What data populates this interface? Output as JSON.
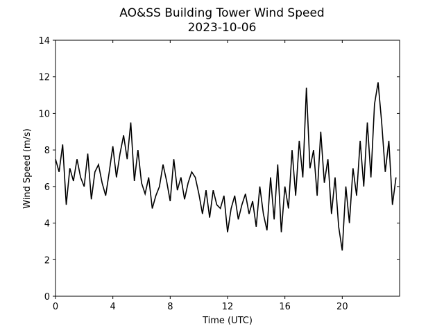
{
  "chart_data": {
    "type": "line",
    "title": "AO&SS Building Tower Wind Speed",
    "subtitle": "2023-10-06",
    "x_label": "Time (UTC)",
    "y_label": "Wind Speed (m/s)",
    "x": [
      0,
      0.25,
      0.5,
      0.75,
      1,
      1.25,
      1.5,
      1.75,
      2,
      2.25,
      2.5,
      2.75,
      3,
      3.25,
      3.5,
      3.75,
      4,
      4.25,
      4.5,
      4.75,
      5,
      5.25,
      5.5,
      5.75,
      6,
      6.25,
      6.5,
      6.75,
      7,
      7.25,
      7.5,
      7.75,
      8,
      8.25,
      8.5,
      8.75,
      9,
      9.25,
      9.5,
      9.75,
      10,
      10.25,
      10.5,
      10.75,
      11,
      11.25,
      11.5,
      11.75,
      12,
      12.25,
      12.5,
      12.75,
      13,
      13.25,
      13.5,
      13.75,
      14,
      14.25,
      14.5,
      14.75,
      15,
      15.25,
      15.5,
      15.75,
      16,
      16.25,
      16.5,
      16.75,
      17,
      17.25,
      17.5,
      17.75,
      18,
      18.25,
      18.5,
      18.75,
      19,
      19.25,
      19.5,
      19.75,
      20,
      20.25,
      20.5,
      20.75,
      21,
      21.25,
      21.5,
      21.75,
      22,
      22.25,
      22.5,
      22.75,
      23,
      23.25,
      23.5,
      23.75
    ],
    "series": [
      {
        "name": "Wind Speed",
        "color": "#000000",
        "values": [
          7.5,
          6.8,
          8.3,
          5.0,
          7.0,
          6.3,
          7.5,
          6.5,
          6.0,
          7.8,
          5.3,
          6.8,
          7.2,
          6.2,
          5.5,
          6.8,
          8.2,
          6.5,
          7.8,
          8.8,
          7.5,
          9.5,
          6.3,
          8.0,
          6.2,
          5.6,
          6.5,
          4.8,
          5.5,
          6.0,
          7.2,
          6.3,
          5.2,
          7.5,
          5.8,
          6.5,
          5.3,
          6.2,
          6.8,
          6.5,
          5.6,
          4.5,
          5.8,
          4.3,
          5.8,
          5.0,
          4.8,
          5.5,
          3.5,
          4.8,
          5.5,
          4.2,
          5.0,
          5.6,
          4.5,
          5.2,
          3.8,
          6.0,
          4.5,
          3.6,
          6.5,
          4.2,
          7.2,
          3.5,
          6.0,
          4.8,
          8.0,
          5.5,
          8.5,
          6.5,
          11.4,
          7.0,
          8.0,
          5.5,
          9.0,
          6.2,
          7.5,
          4.5,
          6.5,
          3.8,
          2.5,
          6.0,
          4.0,
          7.0,
          5.5,
          8.5,
          6.0,
          9.5,
          6.5,
          10.5,
          11.7,
          9.5,
          6.8,
          8.5,
          5.0,
          6.5
        ]
      }
    ],
    "xlim": [
      0,
      24
    ],
    "ylim": [
      0,
      14
    ],
    "xticks": [
      0,
      4,
      8,
      12,
      16,
      20
    ],
    "yticks": [
      0,
      2,
      4,
      6,
      8,
      10,
      12,
      14
    ]
  }
}
